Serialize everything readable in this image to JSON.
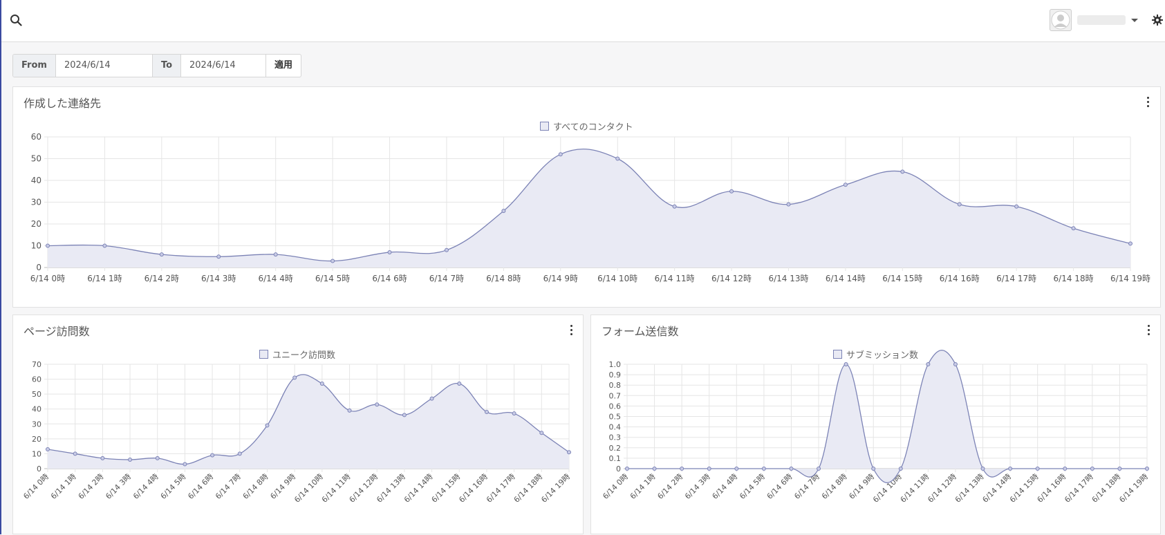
{
  "header": {
    "search_icon": "search-icon",
    "settings_icon": "gear-icon",
    "avatar_icon": "user-avatar-icon"
  },
  "date_filter": {
    "from_label": "From",
    "from_value": "2024/6/14",
    "to_label": "To",
    "to_value": "2024/6/14",
    "apply_label": "適用"
  },
  "colors": {
    "line": "#7b82b5",
    "fill": "#e9eaf4",
    "grid": "#e5e5e5"
  },
  "panels": {
    "contacts": {
      "title": "作成した連絡先"
    },
    "visits": {
      "title": "ページ訪問数"
    },
    "forms": {
      "title": "フォーム送信数"
    }
  },
  "chart_data": [
    {
      "type": "area",
      "categories": [
        "6/14 0時",
        "6/14 1時",
        "6/14 2時",
        "6/14 3時",
        "6/14 4時",
        "6/14 5時",
        "6/14 6時",
        "6/14 7時",
        "6/14 8時",
        "6/14 9時",
        "6/14 10時",
        "6/14 11時",
        "6/14 12時",
        "6/14 13時",
        "6/14 14時",
        "6/14 15時",
        "6/14 16時",
        "6/14 17時",
        "6/14 18時",
        "6/14 19時"
      ],
      "series": [
        {
          "name": "すべてのコンタクト",
          "values": [
            10,
            10,
            6,
            5,
            6,
            3,
            7,
            8,
            26,
            52,
            50,
            28,
            35,
            29,
            38,
            44,
            29,
            28,
            18,
            11
          ]
        }
      ],
      "ylim": [
        0,
        60
      ],
      "yticks": [
        "0",
        "10",
        "20",
        "30",
        "40",
        "50",
        "60"
      ],
      "grid": true,
      "legend": "top-center"
    },
    {
      "type": "area",
      "categories": [
        "6/14 0時",
        "6/14 1時",
        "6/14 2時",
        "6/14 3時",
        "6/14 4時",
        "6/14 5時",
        "6/14 6時",
        "6/14 7時",
        "6/14 8時",
        "6/14 9時",
        "6/14 10時",
        "6/14 11時",
        "6/14 12時",
        "6/14 13時",
        "6/14 14時",
        "6/14 15時",
        "6/14 16時",
        "6/14 17時",
        "6/14 18時",
        "6/14 19時"
      ],
      "series": [
        {
          "name": "ユニーク訪問数",
          "values": [
            13,
            10,
            7,
            6,
            7,
            3,
            9,
            10,
            29,
            61,
            57,
            39,
            43,
            36,
            47,
            57,
            38,
            37,
            24,
            11
          ]
        }
      ],
      "ylim": [
        0,
        70
      ],
      "yticks": [
        "0",
        "10",
        "20",
        "30",
        "40",
        "50",
        "60",
        "70"
      ],
      "grid": true,
      "legend": "top-center"
    },
    {
      "type": "area",
      "categories": [
        "6/14 0時",
        "6/14 1時",
        "6/14 2時",
        "6/14 3時",
        "6/14 4時",
        "6/14 5時",
        "6/14 6時",
        "6/14 7時",
        "6/14 8時",
        "6/14 9時",
        "6/14 10時",
        "6/14 11時",
        "6/14 12時",
        "6/14 13時",
        "6/14 14時",
        "6/14 15時",
        "6/14 16時",
        "6/14 17時",
        "6/14 18時",
        "6/14 19時"
      ],
      "series": [
        {
          "name": "サブミッション数",
          "values": [
            0,
            0,
            0,
            0,
            0,
            0,
            0,
            0,
            1,
            0,
            0,
            1,
            1,
            0,
            0,
            0,
            0,
            0,
            0,
            0
          ]
        }
      ],
      "ylim": [
        0,
        1
      ],
      "yticks": [
        "0",
        "0.1",
        "0.2",
        "0.3",
        "0.4",
        "0.5",
        "0.6",
        "0.7",
        "0.8",
        "0.9",
        "1.0"
      ],
      "grid": true,
      "legend": "top-center"
    }
  ]
}
